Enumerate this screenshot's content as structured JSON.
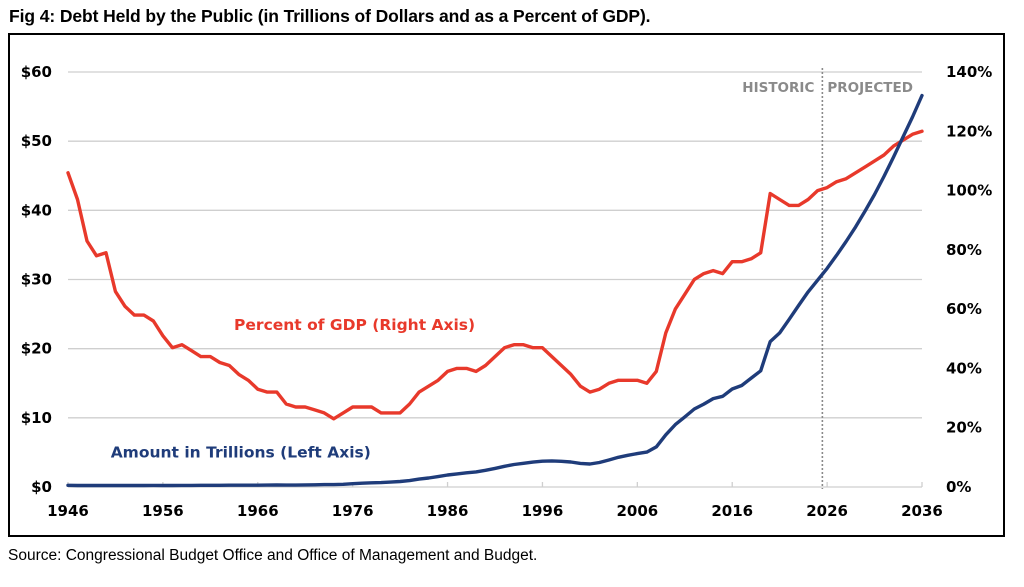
{
  "figure": {
    "title": "Fig 4: Debt Held by the Public (in Trillions of Dollars and as a Percent of GDP).",
    "source": "Source: Congressional Budget Office and Office of Management and Budget."
  },
  "chart_data": {
    "type": "line",
    "title": "Fig 4: Debt Held by the Public (in Trillions of Dollars and as a Percent of GDP).",
    "xlabel": "",
    "ylabel_left": "Trillions of Dollars",
    "ylabel_right": "Percent of GDP",
    "x_ticks": [
      "1946",
      "1956",
      "1966",
      "1976",
      "1986",
      "1996",
      "2006",
      "2016",
      "2026",
      "2036"
    ],
    "xlim": [
      1946,
      2036
    ],
    "y_left_ticks": [
      "$0",
      "$10",
      "$20",
      "$30",
      "$40",
      "$50",
      "$60"
    ],
    "ylim_left": [
      0,
      60
    ],
    "y_right_ticks": [
      "0%",
      "20%",
      "40%",
      "60%",
      "80%",
      "100%",
      "120%",
      "140%"
    ],
    "ylim_right": [
      0,
      140
    ],
    "grid": true,
    "divider": {
      "x": 2025.5,
      "left_label": "HISTORIC",
      "right_label": "PROJECTED"
    },
    "colors": {
      "percent": "#e8392b",
      "amount": "#1f3c7a",
      "grid": "#cfcfcf",
      "divider": "#8a8a8a"
    },
    "series": [
      {
        "name": "Percent of GDP (Right Axis)",
        "axis": "right",
        "label_position": {
          "x": 1963.5,
          "y_pct": 53
        },
        "x": [
          1946,
          1947,
          1948,
          1949,
          1950,
          1951,
          1952,
          1953,
          1954,
          1955,
          1956,
          1957,
          1958,
          1959,
          1960,
          1961,
          1962,
          1963,
          1964,
          1965,
          1966,
          1967,
          1968,
          1969,
          1970,
          1971,
          1972,
          1973,
          1974,
          1975,
          1976,
          1977,
          1978,
          1979,
          1980,
          1981,
          1982,
          1983,
          1984,
          1985,
          1986,
          1987,
          1988,
          1989,
          1990,
          1991,
          1992,
          1993,
          1994,
          1995,
          1996,
          1997,
          1998,
          1999,
          2000,
          2001,
          2002,
          2003,
          2004,
          2005,
          2006,
          2007,
          2008,
          2009,
          2010,
          2011,
          2012,
          2013,
          2014,
          2015,
          2016,
          2017,
          2018,
          2019,
          2020,
          2021,
          2022,
          2023,
          2024,
          2025,
          2026,
          2027,
          2028,
          2029,
          2030,
          2031,
          2032,
          2033,
          2034,
          2035,
          2036
        ],
        "values": [
          106,
          97,
          83,
          78,
          79,
          66,
          61,
          58,
          58,
          56,
          51,
          47,
          48,
          46,
          44,
          44,
          42,
          41,
          38,
          36,
          33,
          32,
          32,
          28,
          27,
          27,
          26,
          25,
          23,
          25,
          27,
          27,
          27,
          25,
          25,
          25,
          28,
          32,
          34,
          36,
          39,
          40,
          40,
          39,
          41,
          44,
          47,
          48,
          48,
          47,
          47,
          44,
          41,
          38,
          34,
          32,
          33,
          35,
          36,
          36,
          36,
          35,
          39,
          52,
          60,
          65,
          70,
          72,
          73,
          72,
          76,
          76,
          77,
          79,
          99,
          97,
          95,
          95,
          97,
          100,
          101,
          103,
          104,
          106,
          108,
          110,
          112,
          115,
          117,
          119,
          120
        ]
      },
      {
        "name": "Amount in Trillions (Left Axis)",
        "axis": "left",
        "label_position": {
          "x": 1950.5,
          "y_usd": 4.3
        },
        "x": [
          1946,
          1947,
          1948,
          1949,
          1950,
          1951,
          1952,
          1953,
          1954,
          1955,
          1956,
          1957,
          1958,
          1959,
          1960,
          1961,
          1962,
          1963,
          1964,
          1965,
          1966,
          1967,
          1968,
          1969,
          1970,
          1971,
          1972,
          1973,
          1974,
          1975,
          1976,
          1977,
          1978,
          1979,
          1980,
          1981,
          1982,
          1983,
          1984,
          1985,
          1986,
          1987,
          1988,
          1989,
          1990,
          1991,
          1992,
          1993,
          1994,
          1995,
          1996,
          1997,
          1998,
          1999,
          2000,
          2001,
          2002,
          2003,
          2004,
          2005,
          2006,
          2007,
          2008,
          2009,
          2010,
          2011,
          2012,
          2013,
          2014,
          2015,
          2016,
          2017,
          2018,
          2019,
          2020,
          2021,
          2022,
          2023,
          2024,
          2025,
          2026,
          2027,
          2028,
          2029,
          2030,
          2031,
          2032,
          2033,
          2034,
          2035,
          2036
        ],
        "values": [
          0.24,
          0.22,
          0.22,
          0.21,
          0.22,
          0.21,
          0.21,
          0.22,
          0.22,
          0.23,
          0.22,
          0.22,
          0.23,
          0.23,
          0.24,
          0.24,
          0.25,
          0.26,
          0.26,
          0.26,
          0.26,
          0.27,
          0.29,
          0.28,
          0.28,
          0.3,
          0.32,
          0.34,
          0.34,
          0.39,
          0.48,
          0.55,
          0.61,
          0.64,
          0.71,
          0.79,
          0.92,
          1.14,
          1.3,
          1.5,
          1.74,
          1.89,
          2.05,
          2.19,
          2.41,
          2.69,
          3.0,
          3.25,
          3.43,
          3.6,
          3.73,
          3.77,
          3.72,
          3.61,
          3.41,
          3.32,
          3.54,
          3.91,
          4.3,
          4.59,
          4.83,
          5.04,
          5.8,
          7.54,
          9.02,
          10.13,
          11.28,
          11.98,
          12.78,
          13.12,
          14.17,
          14.67,
          15.75,
          16.8,
          21.02,
          22.28,
          24.25,
          26.24,
          28.21,
          29.9,
          31.6,
          33.5,
          35.5,
          37.6,
          39.9,
          42.3,
          44.9,
          47.7,
          50.6,
          53.5,
          56.6
        ]
      }
    ]
  }
}
